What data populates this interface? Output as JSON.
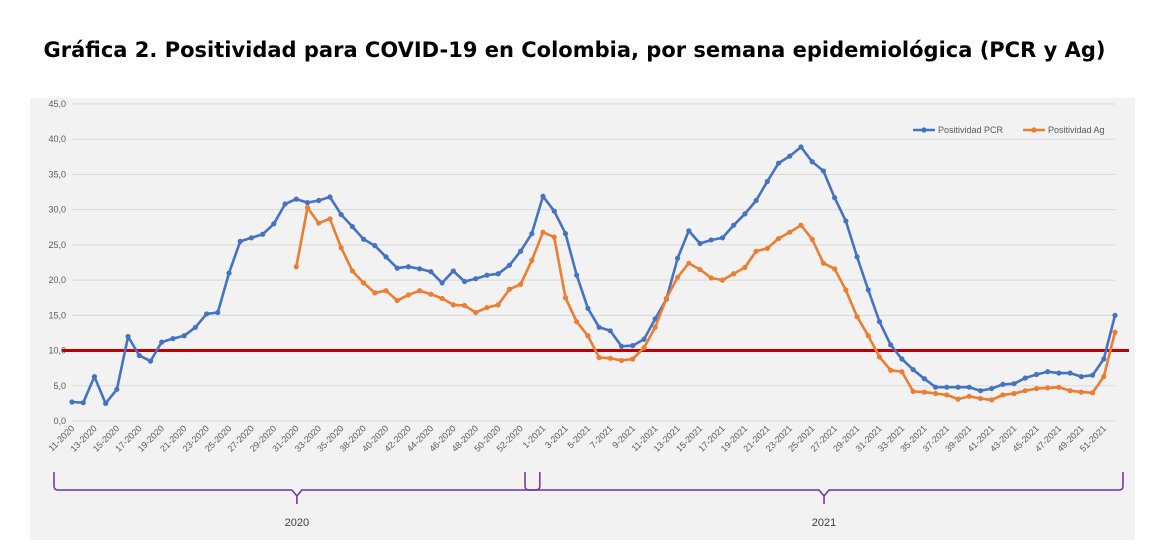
{
  "title": "Gráfica 2. Positividad para COVID-19 en Colombia, por semana epidemiológica (PCR y Ag)",
  "colors": {
    "pcr": "#4472C4",
    "ag": "#ED7D31",
    "threshold": "#C00000",
    "bracket": "#7030A0",
    "plot_bg": "#F2F2F2"
  },
  "chart_data": {
    "type": "line",
    "x": [
      "11-2020",
      "12-2020",
      "13-2020",
      "14-2020",
      "15-2020",
      "16-2020",
      "17-2020",
      "18-2020",
      "19-2020",
      "20-2020",
      "21-2020",
      "22-2020",
      "23-2020",
      "24-2020",
      "25-2020",
      "26-2020",
      "27-2020",
      "28-2020",
      "29-2020",
      "30-2020",
      "31-2020",
      "32-2020",
      "33-2020",
      "34-2020",
      "35-2020",
      "36-2020",
      "38-2020",
      "39-2020",
      "40-2020",
      "41-2020",
      "42-2020",
      "43-2020",
      "44-2020",
      "45-2020",
      "46-2020",
      "47-2020",
      "48-2020",
      "49-2020",
      "50-2020",
      "51-2020",
      "52-2020",
      "53-2020",
      "1-2021",
      "2-2021",
      "3-2021",
      "4-2021",
      "5-2021",
      "6-2021",
      "7-2021",
      "8-2021",
      "9-2021",
      "10-2021",
      "11-2021",
      "12-2021",
      "13-2021",
      "14-2021",
      "15-2021",
      "16-2021",
      "17-2021",
      "18-2021",
      "19-2021",
      "20-2021",
      "21-2021",
      "22-2021",
      "23-2021",
      "24-2021",
      "25-2021",
      "26-2021",
      "27-2021",
      "28-2021",
      "29-2021",
      "30-2021",
      "31-2021",
      "32-2021",
      "33-2021",
      "34-2021",
      "35-2021",
      "36-2021",
      "37-2021",
      "38-2021",
      "39-2021",
      "40-2021",
      "41-2021",
      "42-2021",
      "43-2021",
      "44-2021",
      "45-2021",
      "46-2021",
      "47-2021",
      "48-2021",
      "49-2021",
      "50-2021",
      "51-2021",
      "52-2021"
    ],
    "x_tick_labels": [
      "11-2020",
      "13-2020",
      "15-2020",
      "17-2020",
      "19-2020",
      "21-2020",
      "23-2020",
      "25-2020",
      "27-2020",
      "29-2020",
      "31-2020",
      "33-2020",
      "35-2020",
      "38-2020",
      "40-2020",
      "42-2020",
      "44-2020",
      "46-2020",
      "48-2020",
      "50-2020",
      "52-2020",
      "1-2021",
      "3-2021",
      "5-2021",
      "7-2021",
      "9-2021",
      "11-2021",
      "13-2021",
      "15-2021",
      "17-2021",
      "19-2021",
      "21-2021",
      "23-2021",
      "25-2021",
      "27-2021",
      "29-2021",
      "31-2021",
      "33-2021",
      "35-2021",
      "37-2021",
      "39-2021",
      "41-2021",
      "43-2021",
      "45-2021",
      "47-2021",
      "49-2021",
      "51-2021"
    ],
    "series": [
      {
        "name": "Positividad PCR",
        "values": [
          2.7,
          2.6,
          6.3,
          2.5,
          4.5,
          12.0,
          9.3,
          8.5,
          11.2,
          11.7,
          12.1,
          13.3,
          15.2,
          15.4,
          21.0,
          25.5,
          26.0,
          26.5,
          28.0,
          30.8,
          31.5,
          31.0,
          31.3,
          31.8,
          29.3,
          27.6,
          25.8,
          24.9,
          23.3,
          21.7,
          21.9,
          21.6,
          21.2,
          19.6,
          21.3,
          19.8,
          20.2,
          20.7,
          20.9,
          22.1,
          24.1,
          26.6,
          31.9,
          29.8,
          26.6,
          20.7,
          16.0,
          13.3,
          12.8,
          10.6,
          10.7,
          11.6,
          14.5,
          17.3,
          23.1,
          27.0,
          25.2,
          25.7,
          26.0,
          27.8,
          29.4,
          31.3,
          34.0,
          36.6,
          37.6,
          38.9,
          36.8,
          35.5,
          31.7,
          28.4,
          23.3,
          18.6,
          14.1,
          10.8,
          8.8,
          7.3,
          6.0,
          4.8,
          4.8,
          4.8,
          4.8,
          4.3,
          4.6,
          5.2,
          5.3,
          6.1,
          6.6,
          7.0,
          6.8,
          6.8,
          6.3,
          6.5,
          8.8,
          15.0
        ]
      },
      {
        "name": "Positividad Ag",
        "values": [
          null,
          null,
          null,
          null,
          null,
          null,
          null,
          null,
          null,
          null,
          null,
          null,
          null,
          null,
          null,
          null,
          null,
          null,
          null,
          null,
          21.9,
          30.3,
          28.1,
          28.7,
          24.6,
          21.3,
          19.6,
          18.2,
          18.5,
          17.1,
          17.9,
          18.5,
          18.0,
          17.4,
          16.5,
          16.4,
          15.4,
          16.1,
          16.5,
          18.7,
          19.4,
          22.8,
          26.8,
          26.1,
          17.5,
          14.1,
          12.1,
          9.0,
          8.9,
          8.6,
          8.8,
          10.4,
          13.3,
          17.4,
          20.4,
          22.4,
          21.5,
          20.3,
          20.0,
          20.9,
          21.8,
          24.1,
          24.5,
          25.9,
          26.8,
          27.8,
          25.8,
          22.4,
          21.6,
          18.6,
          14.8,
          12.1,
          9.1,
          7.2,
          7.0,
          4.2,
          4.1,
          3.9,
          3.7,
          3.1,
          3.5,
          3.2,
          3.0,
          3.7,
          3.9,
          4.3,
          4.6,
          4.7,
          4.8,
          4.3,
          4.1,
          4.0,
          6.3,
          12.6
        ]
      }
    ],
    "threshold": 10.0,
    "ylim": [
      0,
      45
    ],
    "y_ticks": [
      "0,0",
      "5,0",
      "10,0",
      "15,0",
      "20,0",
      "25,0",
      "30,0",
      "35,0",
      "40,0",
      "45,0"
    ],
    "legend_position": "top-right",
    "groups": [
      {
        "label": "2020",
        "from": "11-2020",
        "to": "53-2020"
      },
      {
        "label": "2021",
        "from": "1-2021",
        "to": "52-2021"
      }
    ],
    "grid": "horizontal"
  }
}
